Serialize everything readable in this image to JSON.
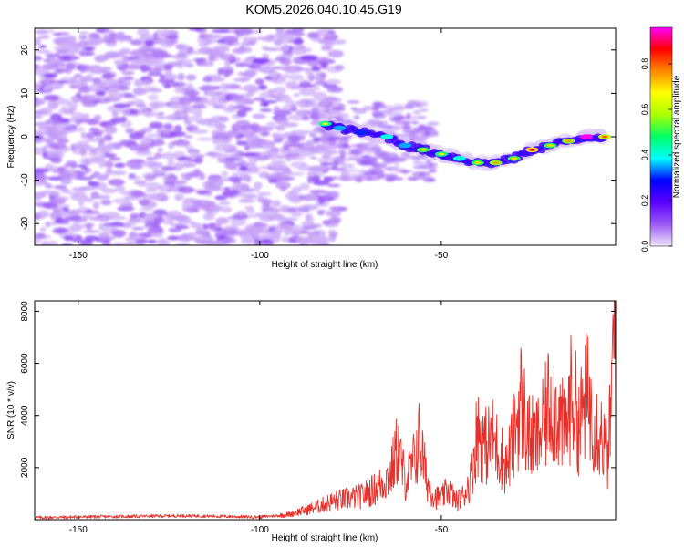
{
  "title": "KOM5.2026.040.10.45.G19",
  "chart_data": [
    {
      "type": "heatmap",
      "name": "spectrogram",
      "xlabel": "Height of straight line (km)",
      "ylabel": "Frequency (Hz)",
      "xlim": [
        -162,
        -2
      ],
      "ylim": [
        -25,
        25
      ],
      "xticks": [
        -150,
        -100,
        -50
      ],
      "yticks": [
        -20,
        -10,
        0,
        10,
        20
      ],
      "colorbar": {
        "label": "Normalized spectral amplitude",
        "range": [
          0,
          0.96
        ],
        "ticks": [
          0,
          0.2,
          0.4,
          0.6,
          0.8
        ],
        "tick_labels": [
          "0.0",
          "0.2",
          "0.4",
          "0.6",
          "0.8"
        ],
        "colors": [
          "#f0e6fa",
          "#9b59f5",
          "#5a00ff",
          "#0000ff",
          "#00ffff",
          "#00ff66",
          "#aaff00",
          "#ffff00",
          "#ff8800",
          "#ff0000",
          "#ff00ff"
        ]
      },
      "signal_track": [
        {
          "x": -82,
          "y": 3,
          "a": 0.45
        },
        {
          "x": -78,
          "y": 2,
          "a": 0.35
        },
        {
          "x": -72,
          "y": 1,
          "a": 0.3
        },
        {
          "x": -65,
          "y": 0,
          "a": 0.4
        },
        {
          "x": -60,
          "y": -2,
          "a": 0.35
        },
        {
          "x": -55,
          "y": -3,
          "a": 0.5
        },
        {
          "x": -50,
          "y": -4,
          "a": 0.45
        },
        {
          "x": -45,
          "y": -5,
          "a": 0.4
        },
        {
          "x": -40,
          "y": -6,
          "a": 0.5
        },
        {
          "x": -35,
          "y": -6,
          "a": 0.55
        },
        {
          "x": -30,
          "y": -5,
          "a": 0.5
        },
        {
          "x": -25,
          "y": -3,
          "a": 0.7
        },
        {
          "x": -20,
          "y": -2,
          "a": 0.5
        },
        {
          "x": -15,
          "y": -1,
          "a": 0.55
        },
        {
          "x": -10,
          "y": 0,
          "a": 0.95
        },
        {
          "x": -5,
          "y": 0,
          "a": 0.6
        }
      ]
    },
    {
      "type": "line",
      "name": "snr",
      "xlabel": "Height of straight line (km)",
      "ylabel": "SNR (10 * v/v)",
      "xlim": [
        -162,
        -2
      ],
      "ylim": [
        0,
        8400
      ],
      "xticks": [
        -150,
        -100,
        -50
      ],
      "yticks": [
        2000,
        4000,
        6000,
        8000
      ],
      "color": "#e8302a",
      "series": [
        {
          "name": "SNR",
          "x": [
            -162,
            -140,
            -120,
            -100,
            -92,
            -88,
            -84,
            -80,
            -76,
            -72,
            -68,
            -64,
            -62,
            -60,
            -58,
            -56,
            -54,
            -52,
            -50,
            -48,
            -46,
            -44,
            -42,
            -40,
            -38,
            -36,
            -34,
            -32,
            -30,
            -28,
            -26,
            -24,
            -22,
            -20,
            -18,
            -16,
            -14,
            -12,
            -10,
            -8,
            -6,
            -4,
            -3,
            -2
          ],
          "y": [
            80,
            120,
            150,
            100,
            200,
            350,
            500,
            700,
            800,
            900,
            1200,
            1700,
            2800,
            1500,
            2000,
            3100,
            1500,
            900,
            800,
            1200,
            700,
            900,
            1500,
            3500,
            2800,
            3100,
            2600,
            2000,
            3200,
            4600,
            3200,
            3000,
            3500,
            4700,
            4200,
            3200,
            4900,
            3600,
            4800,
            3900,
            3300,
            2300,
            5200,
            8300
          ]
        }
      ]
    }
  ]
}
